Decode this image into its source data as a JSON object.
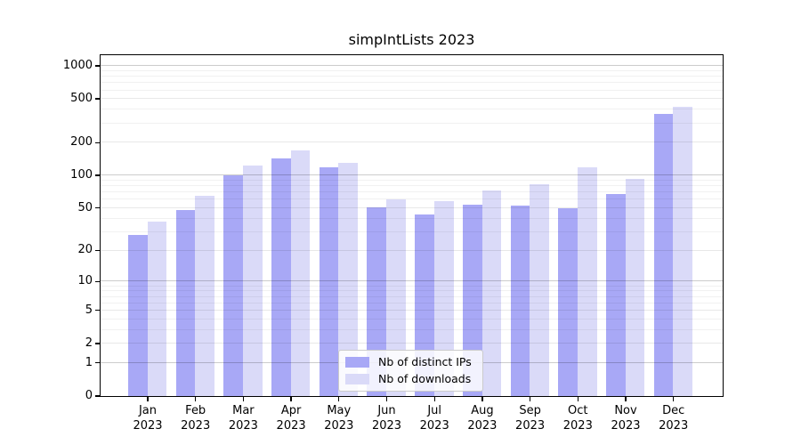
{
  "chart_data": {
    "type": "bar",
    "title": "simpIntLists 2023",
    "categories": [
      "Jan",
      "Feb",
      "Mar",
      "Apr",
      "May",
      "Jun",
      "Jul",
      "Aug",
      "Sep",
      "Oct",
      "Nov",
      "Dec"
    ],
    "x_year_label": "2023",
    "series": [
      {
        "name": "Nb of distinct IPs",
        "color": "#a8a8f6",
        "values": [
          28,
          48,
          100,
          142,
          118,
          51,
          43,
          53,
          52,
          50,
          67,
          363
        ]
      },
      {
        "name": "Nb of downloads",
        "color": "#dadaf8",
        "values": [
          37,
          65,
          122,
          170,
          130,
          60,
          58,
          73,
          82,
          117,
          92,
          418
        ]
      }
    ],
    "y_ticks": [
      0,
      1,
      2,
      5,
      10,
      20,
      50,
      100,
      200,
      500,
      1000
    ],
    "y_scale": "log10(1+y)",
    "ylim": [
      0,
      1250
    ],
    "grid": "horizontal",
    "legend_position": "lower center"
  },
  "colors": {
    "major_grid": "rgba(0,0,0,0.20)",
    "labeled_minor_grid": "rgba(0,0,0,0.09)",
    "minor_grid": "rgba(0,0,0,0.055)",
    "axis": "#000000",
    "background": "#ffffff"
  }
}
